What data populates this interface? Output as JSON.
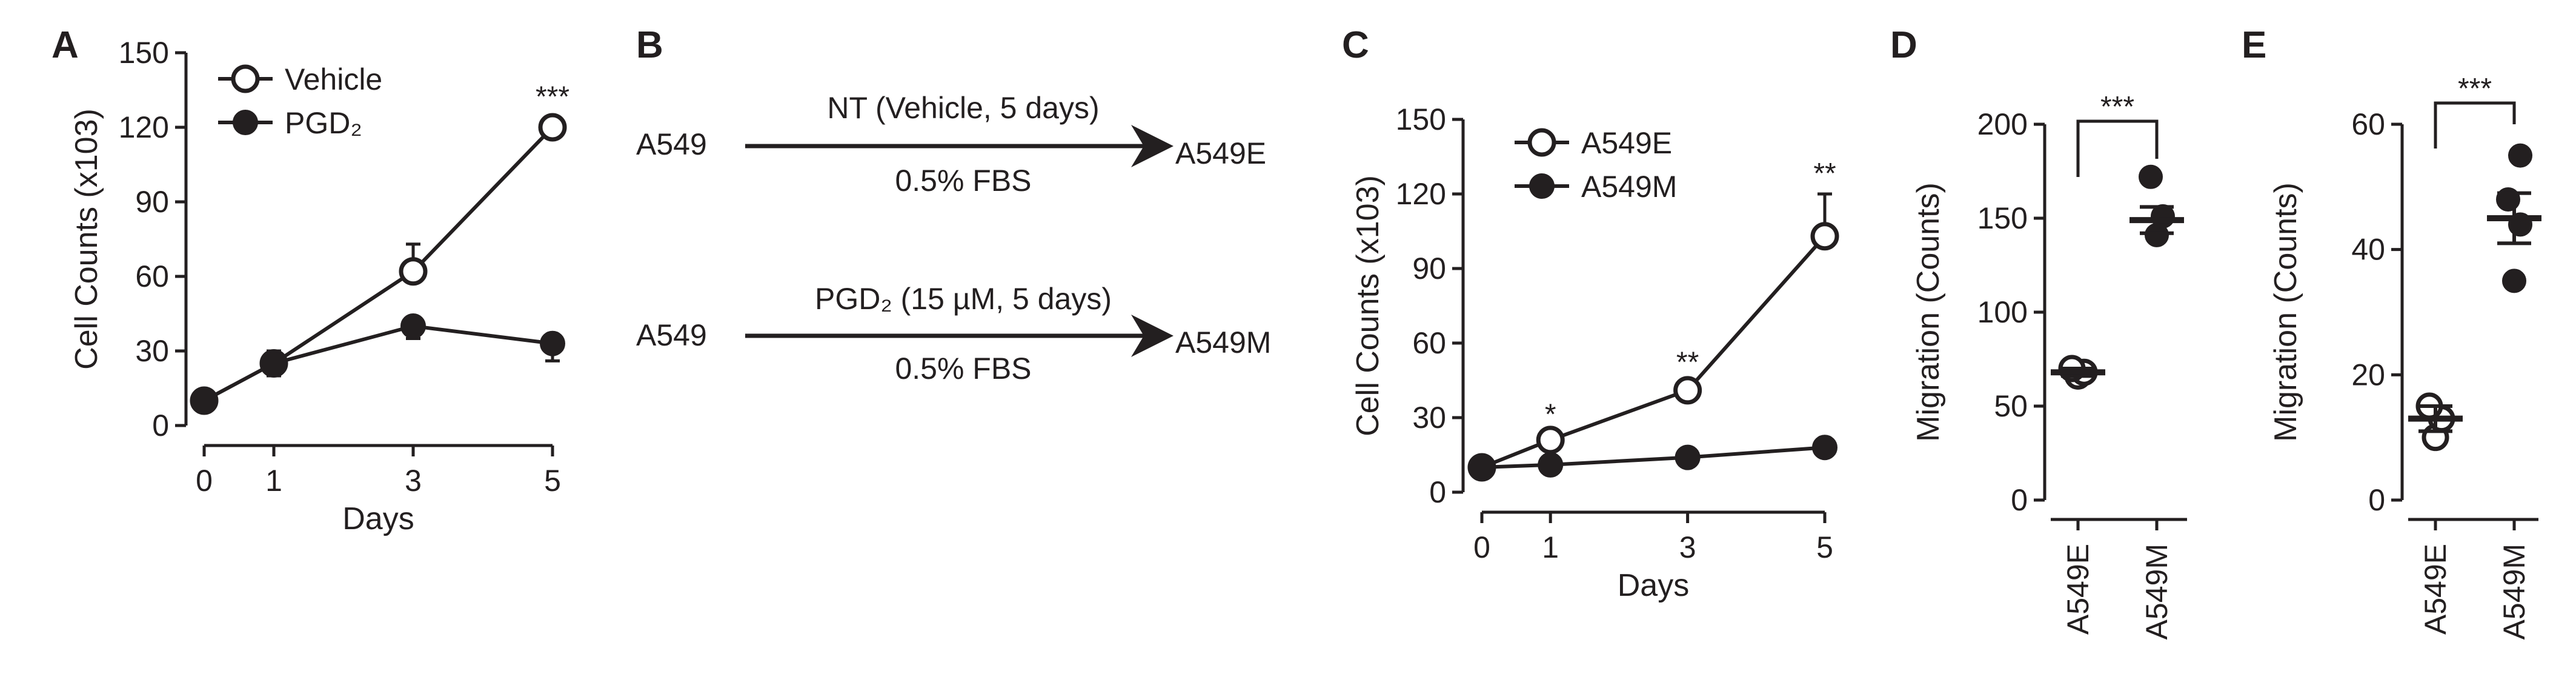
{
  "panels": {
    "A": {
      "letter": "A"
    },
    "B": {
      "letter": "B",
      "row1": {
        "start": "A549",
        "above": "NT (Vehicle, 5 days)",
        "below": "0.5% FBS",
        "end": "A549E"
      },
      "row2": {
        "start": "A549",
        "above": "PGD₂ (15 µM, 5 days)",
        "below": "0.5% FBS",
        "end": "A549M"
      }
    },
    "C": {
      "letter": "C"
    },
    "D": {
      "letter": "D"
    },
    "E": {
      "letter": "E"
    }
  },
  "colors": {
    "ink": "#231f20",
    "open_fill": "#ffffff",
    "filled": "#231f20"
  },
  "chart_data": [
    {
      "panel": "A",
      "type": "line",
      "xlabel": "Days",
      "ylabel": "Cell Counts (x103)",
      "x": [
        0,
        1,
        3,
        5
      ],
      "xlim": [
        0,
        5
      ],
      "ylim": [
        0,
        150
      ],
      "xticks": [
        "0",
        "1",
        "3",
        "5"
      ],
      "yticks": [
        0,
        30,
        60,
        90,
        120,
        150
      ],
      "legend_position": "top-left",
      "series": [
        {
          "name": "Vehicle",
          "marker": "open-circle",
          "values": [
            10,
            25,
            62,
            120
          ],
          "errors": [
            0,
            5,
            11,
            4
          ]
        },
        {
          "name": "PGD₂",
          "marker": "filled-circle",
          "values": [
            10,
            25,
            40,
            33
          ],
          "errors": [
            0,
            5,
            5,
            7
          ]
        }
      ],
      "annotations": [
        {
          "x": 5,
          "text": "***"
        }
      ]
    },
    {
      "panel": "C",
      "type": "line",
      "xlabel": "Days",
      "ylabel": "Cell Counts (x103)",
      "x": [
        0,
        1,
        3,
        5
      ],
      "xlim": [
        0,
        5
      ],
      "ylim": [
        0,
        150
      ],
      "xticks": [
        "0",
        "1",
        "3",
        "5"
      ],
      "yticks": [
        0,
        30,
        60,
        90,
        120,
        150
      ],
      "legend_position": "top-left",
      "series": [
        {
          "name": "A549E",
          "marker": "open-circle",
          "values": [
            10,
            21,
            41,
            103
          ],
          "errors": [
            0,
            2,
            3,
            17
          ]
        },
        {
          "name": "A549M",
          "marker": "filled-circle",
          "values": [
            10,
            11,
            14,
            18
          ],
          "errors": [
            0,
            1,
            1,
            1
          ]
        }
      ],
      "annotations": [
        {
          "x": 1,
          "text": "*"
        },
        {
          "x": 3,
          "text": "**"
        },
        {
          "x": 5,
          "text": "**"
        }
      ]
    },
    {
      "panel": "D",
      "type": "scatter",
      "ylabel": "Migration (Counts)",
      "categories": [
        "A549E",
        "A549M"
      ],
      "ylim": [
        0,
        200
      ],
      "yticks": [
        0,
        50,
        100,
        150,
        200
      ],
      "groups": [
        {
          "category": "A549E",
          "marker": "open-circle",
          "points": [
            66,
            68,
            70
          ],
          "mean": 68,
          "sem": 2
        },
        {
          "category": "A549M",
          "marker": "filled-circle",
          "points": [
            141,
            151,
            172
          ],
          "mean": 149,
          "sem": 7
        }
      ],
      "significance": "***"
    },
    {
      "panel": "E",
      "type": "scatter",
      "ylabel": "Migration (Counts)",
      "categories": [
        "A549E",
        "A549M"
      ],
      "ylim": [
        0,
        60
      ],
      "yticks": [
        0,
        20,
        40,
        60
      ],
      "groups": [
        {
          "category": "A549E",
          "marker": "open-circle",
          "points": [
            10,
            13,
            15
          ],
          "mean": 13,
          "sem": 2
        },
        {
          "category": "A549M",
          "marker": "filled-circle",
          "points": [
            35,
            44,
            48,
            55
          ],
          "mean": 45,
          "sem": 4
        }
      ],
      "significance": "***"
    }
  ]
}
